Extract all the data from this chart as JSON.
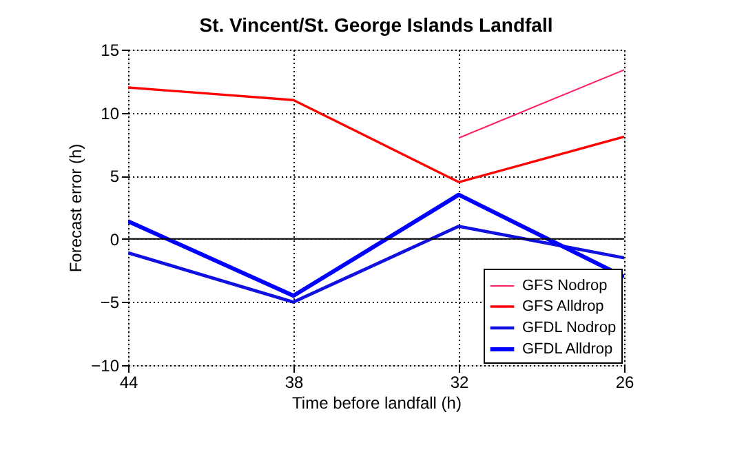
{
  "chart_data": {
    "type": "line",
    "title": "St. Vincent/St. George Islands Landfall",
    "xlabel": "Time before landfall (h)",
    "ylabel": "Forecast error (h)",
    "x": [
      44,
      38,
      32,
      26
    ],
    "series": [
      {
        "name": "GFS Nodrop",
        "color": "#ff2060",
        "values": [
          null,
          null,
          8.0,
          13.4
        ]
      },
      {
        "name": "GFS Alldrop",
        "color": "#ff0000",
        "values": [
          12.0,
          11.0,
          4.5,
          8.1
        ]
      },
      {
        "name": "GFDL Nodrop",
        "color": "#1010e0",
        "values": [
          -1.1,
          -5.0,
          1.0,
          -1.5
        ]
      },
      {
        "name": "GFDL Alldrop",
        "color": "#0000ff",
        "values": [
          1.4,
          -4.5,
          3.5,
          -3.0
        ]
      }
    ],
    "xlim": [
      44,
      26
    ],
    "xticks": [
      44,
      38,
      32,
      26
    ],
    "ylim": [
      -10,
      15
    ],
    "yticks": [
      -10,
      -5,
      0,
      5,
      10,
      15
    ],
    "ref_lines": [
      {
        "axis": "y",
        "value": 0
      }
    ],
    "grid": true,
    "legend": "bottom right",
    "marker": "none",
    "line_style": "solid"
  }
}
